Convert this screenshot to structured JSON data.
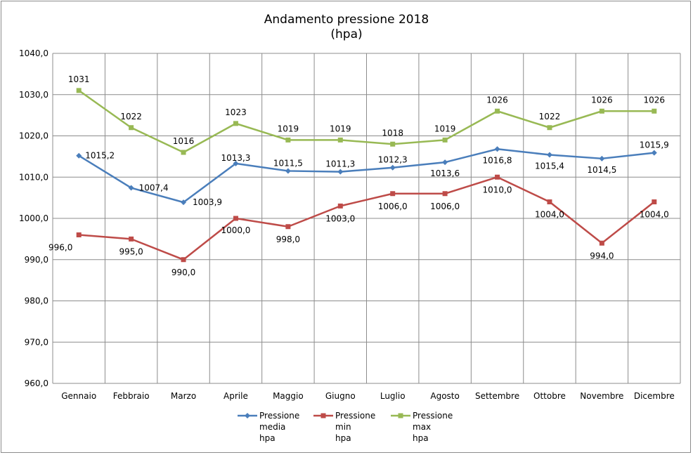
{
  "chart_data": {
    "type": "line",
    "title_line1": "Andamento pressione 2018",
    "title_line2": "(hpa)",
    "xlabel": "",
    "ylabel": "",
    "categories": [
      "Gennaio",
      "Febbraio",
      "Marzo",
      "Aprile",
      "Maggio",
      "Giugno",
      "Luglio",
      "Agosto",
      "Settembre",
      "Ottobre",
      "Novembre",
      "Dicembre"
    ],
    "ylim": [
      960,
      1040
    ],
    "yticks": [
      960,
      970,
      980,
      990,
      1000,
      1010,
      1020,
      1030,
      1040
    ],
    "ytick_labels": [
      "960,0",
      "970,0",
      "980,0",
      "990,0",
      "1000,0",
      "1010,0",
      "1020,0",
      "1030,0",
      "1040,0"
    ],
    "grid": true,
    "legend_position": "bottom",
    "series": [
      {
        "name_lines": [
          "Pressione",
          "media",
          "hpa"
        ],
        "color": "#4a7ebb",
        "marker": "diamond",
        "values": [
          1015.2,
          1007.4,
          1003.9,
          1013.3,
          1011.5,
          1011.3,
          1012.3,
          1013.6,
          1016.8,
          1015.4,
          1014.5,
          1015.9
        ],
        "labels": [
          "1015,2",
          "1007,4",
          "1003,9",
          "1013,3",
          "1011,5",
          "1011,3",
          "1012,3",
          "1013,6",
          "1016,8",
          "1015,4",
          "1014,5",
          "1015,9"
        ]
      },
      {
        "name_lines": [
          "Pressione",
          "min",
          "hpa"
        ],
        "color": "#be4b48",
        "marker": "square",
        "values": [
          996.0,
          995.0,
          990.0,
          1000.0,
          998.0,
          1003.0,
          1006.0,
          1006.0,
          1010.0,
          1004.0,
          994.0,
          1004.0
        ],
        "labels": [
          "996,0",
          "995,0",
          "990,0",
          "1000,0",
          "998,0",
          "1003,0",
          "1006,0",
          "1006,0",
          "1010,0",
          "1004,0",
          "994,0",
          "1004,0"
        ]
      },
      {
        "name_lines": [
          "Pressione",
          "max",
          "hpa"
        ],
        "color": "#98b954",
        "marker": "square",
        "values": [
          1031,
          1022,
          1016,
          1023,
          1019,
          1019,
          1018,
          1019,
          1026,
          1022,
          1026,
          1026
        ],
        "labels": [
          "1031",
          "1022",
          "1016",
          "1023",
          "1019",
          "1019",
          "1018",
          "1019",
          "1026",
          "1022",
          "1026",
          "1026"
        ]
      }
    ]
  }
}
